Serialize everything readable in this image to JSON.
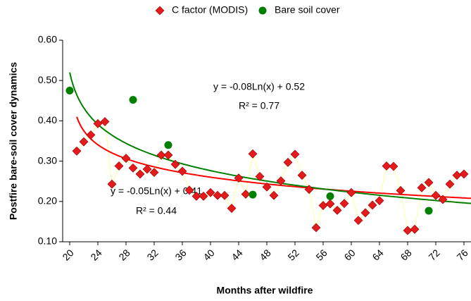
{
  "chart_data": {
    "type": "scatter",
    "xlabel": "Months after wildfire",
    "ylabel": "Postfire bare-soil cover dynamics",
    "xlim": [
      19,
      77
    ],
    "xticks": [
      20,
      24,
      28,
      32,
      36,
      40,
      44,
      48,
      52,
      56,
      60,
      64,
      68,
      72,
      76
    ],
    "ylim": [
      0.1,
      0.6
    ],
    "yticks": [
      {
        "value": 0.1,
        "label": "0.10"
      },
      {
        "value": 0.2,
        "label": "0.20"
      },
      {
        "value": 0.3,
        "label": "0.30"
      },
      {
        "value": 0.4,
        "label": "0.40"
      },
      {
        "value": 0.5,
        "label": "0.50"
      },
      {
        "value": 0.6,
        "label": "0.60"
      }
    ],
    "legend": "top",
    "series": [
      {
        "name": "C factor (MODIS)",
        "color": "#e41a1c",
        "line_color": "#ffff99",
        "marker": "diamond",
        "x": [
          21,
          22,
          23,
          24,
          25,
          26,
          27,
          28,
          29,
          30,
          31,
          32,
          33,
          34,
          35,
          36,
          37,
          38,
          39,
          40,
          41,
          42,
          43,
          44,
          45,
          46,
          47,
          48,
          49,
          50,
          51,
          52,
          53,
          54,
          55,
          56,
          57,
          58,
          59,
          60,
          61,
          62,
          63,
          64,
          65,
          66,
          67,
          68,
          69,
          70,
          71,
          72,
          73,
          74,
          75,
          76
        ],
        "values": [
          0.325,
          0.348,
          0.365,
          0.393,
          0.398,
          0.243,
          0.288,
          0.307,
          0.283,
          0.268,
          0.28,
          0.272,
          0.315,
          0.315,
          0.292,
          0.275,
          0.228,
          0.213,
          0.213,
          0.222,
          0.215,
          0.215,
          0.183,
          0.258,
          0.218,
          0.318,
          0.262,
          0.236,
          0.215,
          0.251,
          0.297,
          0.317,
          0.265,
          0.23,
          0.135,
          0.19,
          0.194,
          0.178,
          0.195,
          0.222,
          0.153,
          0.172,
          0.191,
          0.202,
          0.288,
          0.287,
          0.227,
          0.128,
          0.131,
          0.234,
          0.247,
          0.215,
          0.205,
          0.243,
          0.265,
          0.268
        ],
        "trendline": {
          "color": "#ff0000",
          "equation": "y = -0.05Ln(x) + 0.41",
          "r2": "R² = 0.44"
        }
      },
      {
        "name": "Bare soil cover",
        "color": "#008000",
        "marker": "circle",
        "x": [
          20,
          29,
          34,
          46,
          57,
          71
        ],
        "values": [
          0.475,
          0.452,
          0.34,
          0.217,
          0.213,
          0.177
        ],
        "trendline": {
          "color": "#008000",
          "equation": "y = -0.08Ln(x) + 0.52",
          "r2": "R² = 0.77"
        }
      }
    ]
  }
}
